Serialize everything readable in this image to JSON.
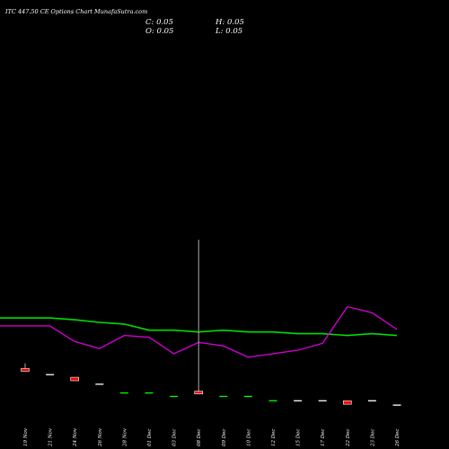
{
  "title": "ITC 447.50  CE Options  Chart MunafaSutra.com",
  "ohlc": {
    "close": "C: 0.05",
    "open": "O: 0.05",
    "high": "H: 0.05",
    "low": "L: 0.05"
  },
  "colors": {
    "background": "#000000",
    "ma_short": "#cc00cc",
    "ma_long": "#00dd00",
    "bear_candle": "#ff0000",
    "bull_candle": "#ffffff",
    "wick": "#aaaaaa",
    "flat_candle": "#ffffff",
    "flat_candle_alt": "#00ff00"
  },
  "chart_data": {
    "type": "candlestick",
    "x": [
      "19 Nov",
      "21 Nov",
      "24 Nov",
      "26 Nov",
      "28 Nov",
      "01 Dec",
      "03 Dec",
      "08 Dec",
      "09 Dec",
      "10 Dec",
      "12 Dec",
      "15 Dec",
      "17 Dec",
      "22 Dec",
      "23 Dec",
      "26 Dec"
    ],
    "candles": [
      {
        "open": 0.47,
        "high": 0.53,
        "low": 0.44,
        "close": 0.44,
        "dir": "down"
      },
      {
        "open": 0.4,
        "high": 0.4,
        "low": 0.4,
        "close": 0.4,
        "dir": "flat"
      },
      {
        "open": 0.37,
        "high": 0.37,
        "low": 0.33,
        "close": 0.33,
        "dir": "down"
      },
      {
        "open": 0.29,
        "high": 0.29,
        "low": 0.29,
        "close": 0.29,
        "dir": "flat"
      },
      {
        "open": 0.19,
        "high": 0.19,
        "low": 0.19,
        "close": 0.19,
        "dir": "flat"
      },
      {
        "open": 0.19,
        "high": 0.19,
        "low": 0.19,
        "close": 0.19,
        "dir": "flat"
      },
      {
        "open": 0.15,
        "high": 0.15,
        "low": 0.15,
        "close": 0.15,
        "dir": "flat"
      },
      {
        "open": 0.21,
        "high": 1.95,
        "low": 0.18,
        "close": 0.18,
        "dir": "down"
      },
      {
        "open": 0.15,
        "high": 0.15,
        "low": 0.15,
        "close": 0.15,
        "dir": "flat"
      },
      {
        "open": 0.15,
        "high": 0.15,
        "low": 0.15,
        "close": 0.15,
        "dir": "flat"
      },
      {
        "open": 0.1,
        "high": 0.1,
        "low": 0.1,
        "close": 0.1,
        "dir": "flat"
      },
      {
        "open": 0.1,
        "high": 0.1,
        "low": 0.1,
        "close": 0.1,
        "dir": "flat"
      },
      {
        "open": 0.1,
        "high": 0.1,
        "low": 0.1,
        "close": 0.1,
        "dir": "flat"
      },
      {
        "open": 0.1,
        "high": 0.1,
        "low": 0.06,
        "close": 0.06,
        "dir": "down"
      },
      {
        "open": 0.1,
        "high": 0.1,
        "low": 0.1,
        "close": 0.1,
        "dir": "flat"
      },
      {
        "open": 0.05,
        "high": 0.05,
        "low": 0.05,
        "close": 0.05,
        "dir": "flat"
      }
    ],
    "ma_short": [
      0.96,
      0.96,
      0.78,
      0.7,
      0.85,
      0.83,
      0.64,
      0.77,
      0.73,
      0.6,
      0.64,
      0.68,
      0.76,
      1.18,
      1.11,
      0.92
    ],
    "ma_long": [
      1.05,
      1.05,
      1.03,
      1.0,
      0.98,
      0.91,
      0.91,
      0.89,
      0.91,
      0.89,
      0.89,
      0.87,
      0.87,
      0.85,
      0.87,
      0.85
    ],
    "ylim": [
      0,
      2.0
    ],
    "grid": false,
    "legend": "none"
  }
}
